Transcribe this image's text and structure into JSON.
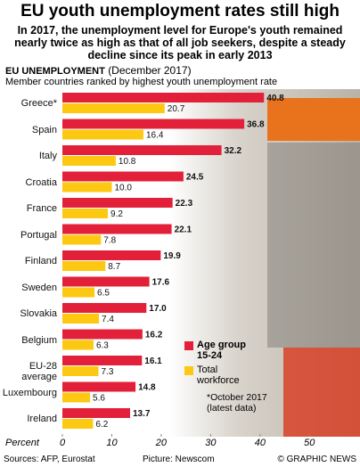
{
  "chart_data": {
    "type": "bar",
    "orientation": "horizontal",
    "title": "EU youth unemployment rates still high",
    "subtitle": "In 2017, the unemployment level for Europe's youth remained nearly twice as high as that of all job seekers, despite a steady decline since its peak in early 2013",
    "heading": "EU UNEMPLOYMENT",
    "heading_note": "(December 2017)",
    "description": "Member countries ranked by highest youth unemployment rate",
    "categories": [
      "Greece*",
      "Spain",
      "Italy",
      "Croatia",
      "France",
      "Portugal",
      "Finland",
      "Sweden",
      "Slovakia",
      "Belgium",
      "EU-28 average",
      "Luxembourg",
      "Ireland"
    ],
    "series": [
      {
        "name": "Age group 15-24",
        "color": "#e3203a",
        "values": [
          40.8,
          36.8,
          32.2,
          24.5,
          22.3,
          22.1,
          19.9,
          17.6,
          17.0,
          16.2,
          16.1,
          14.8,
          13.7
        ],
        "value_labels": [
          "40.8",
          "36.8",
          "32.2",
          "24.5",
          "22.3",
          "22.1",
          "19.9",
          "17.6",
          "17.0",
          "16.2",
          "16.1",
          "14.8",
          "13.7"
        ]
      },
      {
        "name": "Total workforce",
        "color": "#fcc812",
        "values": [
          20.7,
          16.4,
          10.8,
          10.0,
          9.2,
          7.8,
          8.7,
          6.5,
          7.4,
          6.3,
          7.3,
          5.6,
          6.2
        ],
        "value_labels": [
          "20.7",
          "16.4",
          "10.8",
          "10.0",
          "9.2",
          "7.8",
          "8.7",
          "6.5",
          "7.4",
          "6.3",
          "7.3",
          "5.6",
          "6.2"
        ]
      }
    ],
    "xlabel": "Percent",
    "xlim": [
      0,
      59.5
    ],
    "xticks": [
      0,
      10,
      20,
      30,
      40,
      50
    ],
    "legend": "right",
    "note": "*October 2017 (latest data)"
  },
  "footer": {
    "sources": "Sources: AFP, Eurostat",
    "picture": "Picture: Newscom",
    "credit": "© GRAPHIC NEWS"
  }
}
